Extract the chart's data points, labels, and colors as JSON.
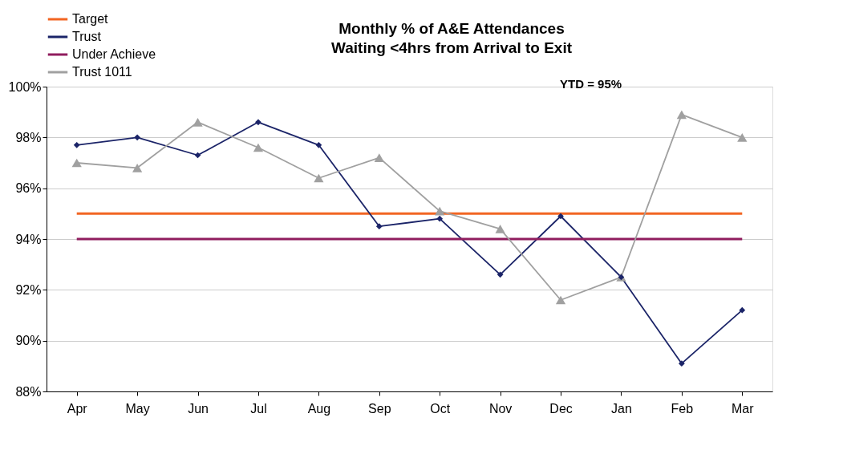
{
  "chart_data": {
    "type": "line",
    "title": "Monthly % of A&E Attendances\nWaiting <4hrs from Arrival to Exit",
    "categories": [
      "Apr",
      "May",
      "Jun",
      "Jul",
      "Aug",
      "Sep",
      "Oct",
      "Nov",
      "Dec",
      "Jan",
      "Feb",
      "Mar"
    ],
    "series": [
      {
        "name": "Target",
        "color": "#f26522",
        "marker": "none",
        "values": [
          95,
          95,
          95,
          95,
          95,
          95,
          95,
          95,
          95,
          95,
          95,
          95
        ]
      },
      {
        "name": "Trust",
        "color": "#1b2468",
        "marker": "diamond",
        "values": [
          97.7,
          98.0,
          97.3,
          98.6,
          97.7,
          94.5,
          94.8,
          92.6,
          94.9,
          92.5,
          89.1,
          91.2
        ]
      },
      {
        "name": "Under Achieve",
        "color": "#901d5e",
        "marker": "none",
        "values": [
          94,
          94,
          94,
          94,
          94,
          94,
          94,
          94,
          94,
          94,
          94,
          94
        ]
      },
      {
        "name": "Trust 1011",
        "color": "#a0a0a0",
        "marker": "triangle",
        "values": [
          97.0,
          96.8,
          98.6,
          97.6,
          96.4,
          97.2,
          95.1,
          94.4,
          91.6,
          92.5,
          98.9,
          98.0
        ]
      }
    ],
    "ylim": [
      88,
      100
    ],
    "yticks": [
      {
        "value": 88,
        "label": "88%"
      },
      {
        "value": 90,
        "label": "90%"
      },
      {
        "value": 92,
        "label": "92%"
      },
      {
        "value": 94,
        "label": "94%"
      },
      {
        "value": 96,
        "label": "96%"
      },
      {
        "value": 98,
        "label": "98%"
      },
      {
        "value": 100,
        "label": "100%"
      }
    ],
    "grid": "y",
    "legend": "top left",
    "annotations": [
      "YTD = 95%"
    ]
  }
}
